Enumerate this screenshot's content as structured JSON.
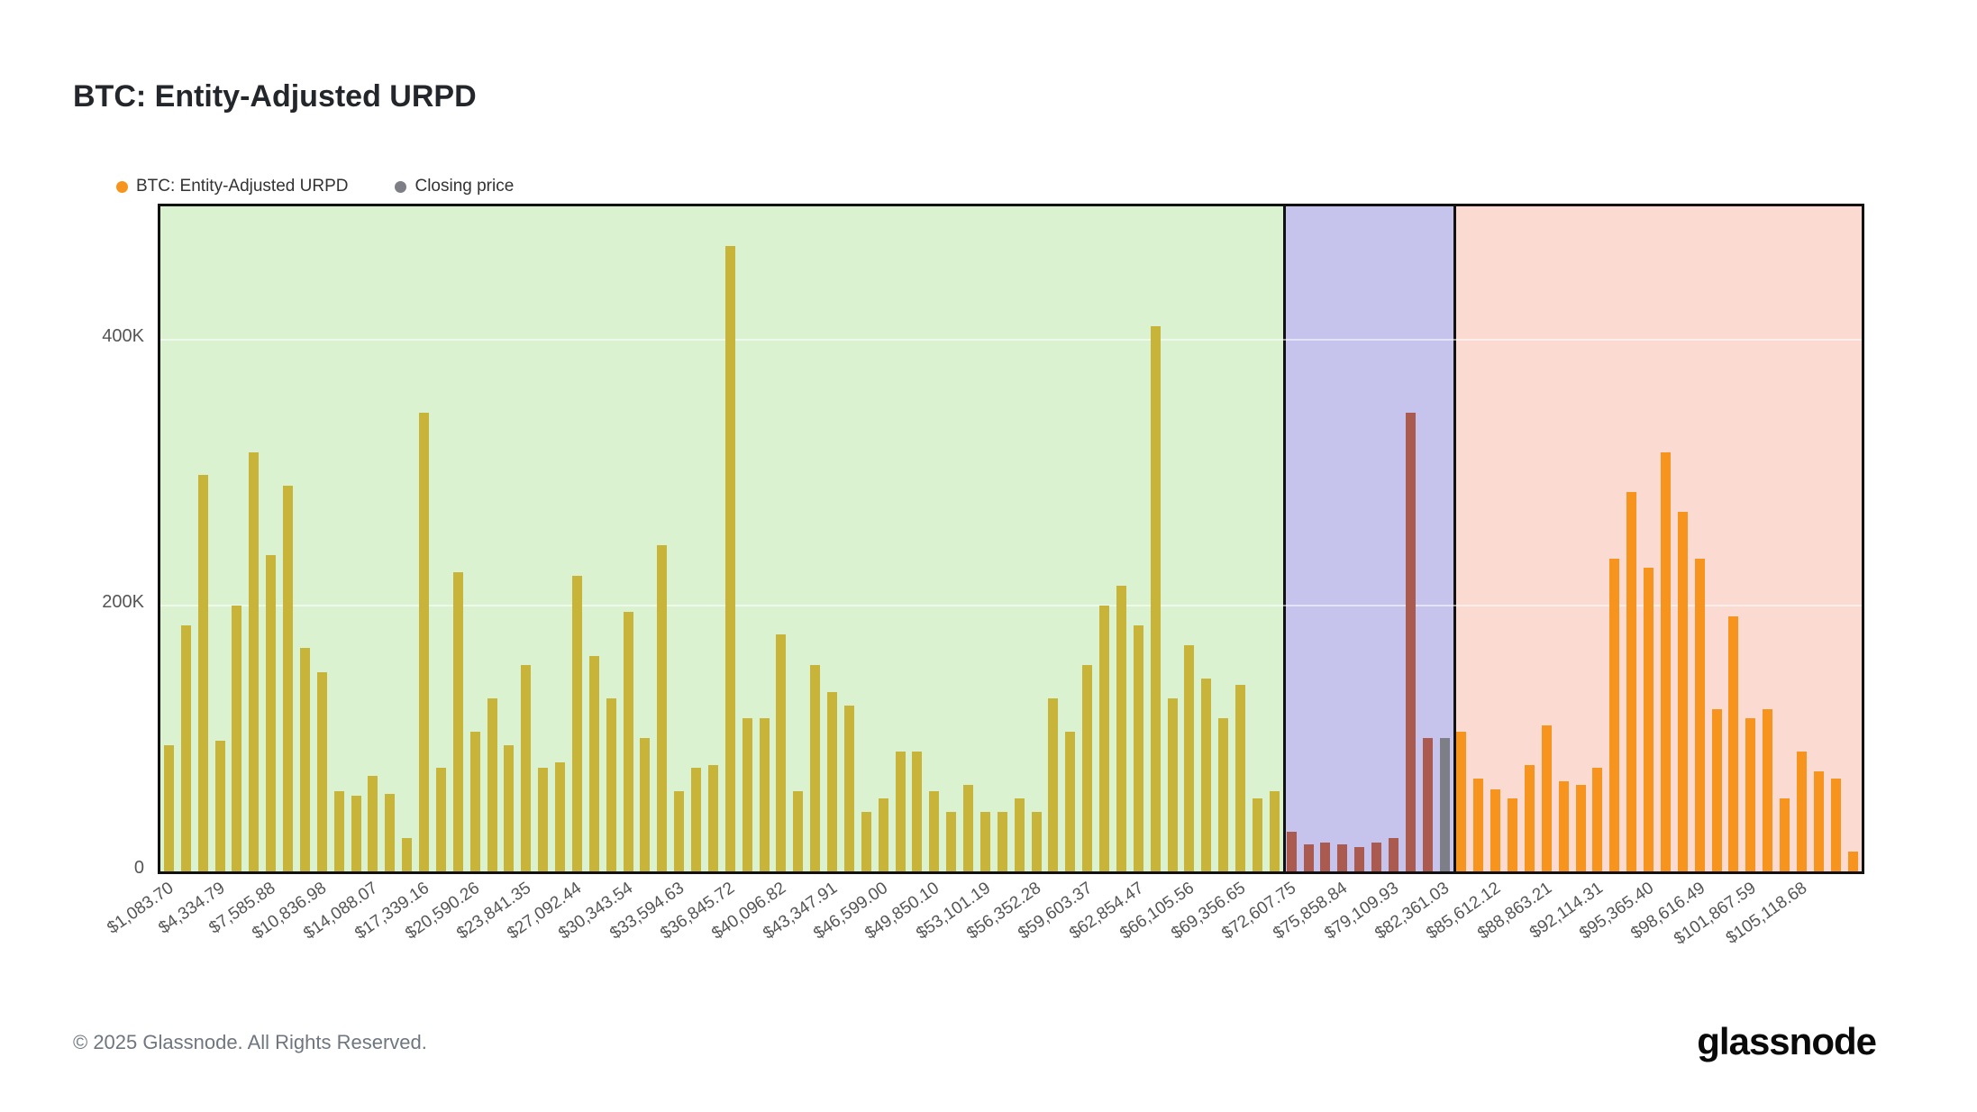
{
  "page": {
    "title": "BTC: Entity-Adjusted URPD",
    "footer_copyright": "© 2025 Glassnode. All Rights Reserved.",
    "brand": "glassnode"
  },
  "legend": [
    {
      "label": "BTC: Entity-Adjusted URPD",
      "color": "#f7941d"
    },
    {
      "label": "Closing price",
      "color": "#7e7e86"
    }
  ],
  "chart_data": {
    "type": "bar",
    "title": "BTC: Entity-Adjusted URPD",
    "xlabel": "",
    "ylabel": "",
    "ylim_k": [
      0,
      500
    ],
    "grid": "faint horizontal",
    "legend_position": "top-left",
    "yticks": [
      {
        "value_k": 0,
        "label": "0"
      },
      {
        "value_k": 200,
        "label": "200K"
      },
      {
        "value_k": 400,
        "label": "400K"
      }
    ],
    "x_tick_every_n_bars": 3,
    "x_tick_labels": [
      "$1,083.70",
      "$4,334.79",
      "$7,585.88",
      "$10,836.98",
      "$14,088.07",
      "$17,339.16",
      "$20,590.26",
      "$23,841.35",
      "$27,092.44",
      "$30,343.54",
      "$33,594.63",
      "$36,845.72",
      "$40,096.82",
      "$43,347.91",
      "$46,599.00",
      "$49,850.10",
      "$53,101.19",
      "$56,352.28",
      "$59,603.37",
      "$62,854.47",
      "$66,105.56",
      "$69,356.65",
      "$72,607.75",
      "$75,858.84",
      "$79,109.93",
      "$82,361.03",
      "$85,612.12",
      "$88,863.21",
      "$92,114.31",
      "$95,365.40",
      "$98,616.49",
      "$101,867.59",
      "$105,118.68"
    ],
    "regions": [
      {
        "name": "below-price-profit",
        "background": "#daf2cf",
        "start_bar": 0,
        "end_bar": 65,
        "bar_color": "#c9b43a"
      },
      {
        "name": "around-price",
        "background": "#c6c3ed",
        "start_bar": 66,
        "end_bar": 75,
        "bar_color": "#ab5a50"
      },
      {
        "name": "above-price-loss",
        "background": "#fbdad2",
        "start_bar": 76,
        "end_bar": 99,
        "bar_color": "#f7941d"
      }
    ],
    "closing_price_bar_index": 75,
    "closing_price_bar_color": "#7e7e86",
    "values_btc_k": [
      95,
      185,
      298,
      98,
      200,
      315,
      238,
      290,
      168,
      150,
      60,
      57,
      72,
      58,
      25,
      345,
      78,
      225,
      105,
      130,
      95,
      155,
      78,
      82,
      222,
      162,
      130,
      195,
      100,
      245,
      60,
      78,
      80,
      470,
      115,
      115,
      178,
      60,
      155,
      135,
      125,
      45,
      55,
      90,
      90,
      60,
      45,
      65,
      45,
      45,
      55,
      45,
      130,
      105,
      155,
      200,
      215,
      185,
      410,
      130,
      170,
      145,
      115,
      140,
      55,
      60,
      30,
      20,
      22,
      20,
      18,
      22,
      25,
      345,
      100,
      100,
      105,
      70,
      62,
      55,
      80,
      110,
      68,
      65,
      78,
      235,
      285,
      228,
      315,
      270,
      235,
      122,
      192,
      115,
      122,
      55,
      90,
      75,
      70,
      15
    ]
  }
}
